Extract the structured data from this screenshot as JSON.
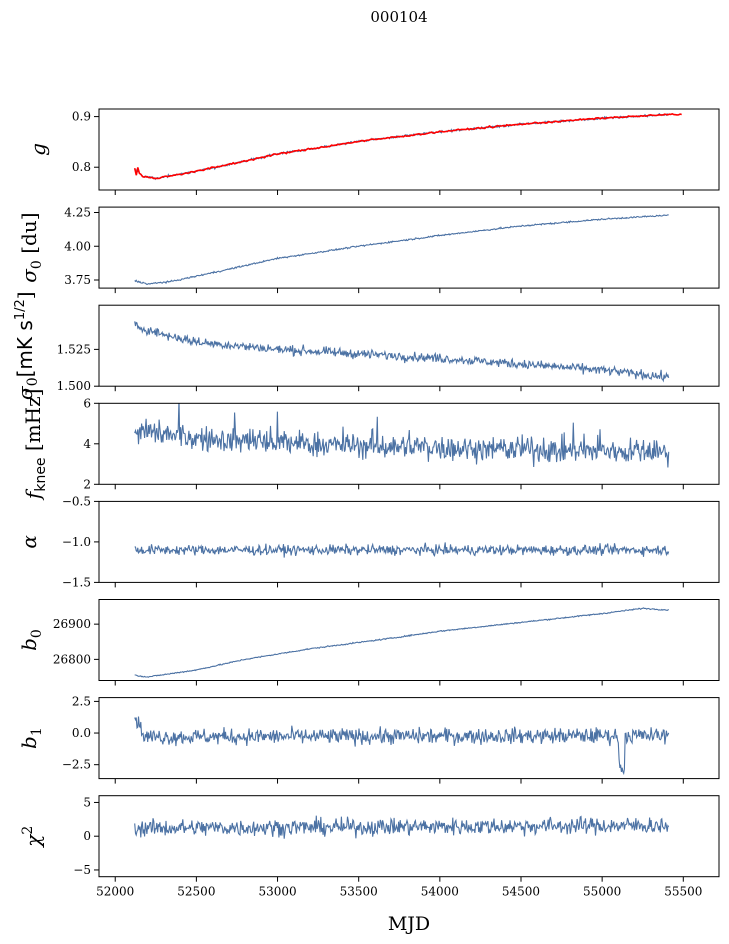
{
  "figure": {
    "suptitle": "000104"
  },
  "chart_data": {
    "type": "line",
    "xlabel": "MJD",
    "xlim": [
      51900,
      55720
    ],
    "xticks": [
      52000,
      52500,
      53000,
      53500,
      54000,
      54500,
      55000,
      55500
    ],
    "xtick_labels": [
      "52000",
      "52500",
      "53000",
      "53500",
      "54000",
      "54500",
      "55000",
      "55500"
    ],
    "data_range": [
      52120,
      55410
    ],
    "series_color": "#4c72a4",
    "overlay_color": "#ff0000",
    "panels": [
      {
        "ylabel": "g",
        "ylim": [
          0.755,
          0.915
        ],
        "yticks": [
          0.8,
          0.9
        ],
        "ytick_labels": [
          "0.8",
          "0.9"
        ],
        "trend": [
          [
            52120,
            0.797
          ],
          [
            52170,
            0.782
          ],
          [
            52250,
            0.778
          ],
          [
            52500,
            0.792
          ],
          [
            53000,
            0.826
          ],
          [
            53500,
            0.851
          ],
          [
            54000,
            0.87
          ],
          [
            54500,
            0.885
          ],
          [
            55000,
            0.897
          ],
          [
            55410,
            0.904
          ]
        ],
        "noise": 0.0015,
        "overlay": true
      },
      {
        "ylabel": "σ0 [du]",
        "ylim": [
          3.69,
          4.29
        ],
        "yticks": [
          3.75,
          4.0,
          4.25
        ],
        "ytick_labels": [
          "3.75",
          "4.00",
          "4.25"
        ],
        "trend": [
          [
            52120,
            3.745
          ],
          [
            52200,
            3.72
          ],
          [
            52350,
            3.74
          ],
          [
            52700,
            3.83
          ],
          [
            53000,
            3.91
          ],
          [
            53500,
            4.0
          ],
          [
            54000,
            4.08
          ],
          [
            54500,
            4.15
          ],
          [
            55000,
            4.2
          ],
          [
            55410,
            4.23
          ]
        ],
        "noise": 0.004
      },
      {
        "ylabel": "σ0[mK s1/2]",
        "ylim": [
          1.5,
          1.555
        ],
        "yticks": [
          1.5,
          1.525
        ],
        "ytick_labels": [
          "1.500",
          "1.525"
        ],
        "trend": [
          [
            52120,
            1.541
          ],
          [
            52300,
            1.535
          ],
          [
            52500,
            1.53
          ],
          [
            53000,
            1.525
          ],
          [
            53500,
            1.522
          ],
          [
            54000,
            1.519
          ],
          [
            54500,
            1.515
          ],
          [
            55000,
            1.511
          ],
          [
            55410,
            1.506
          ]
        ],
        "noise": 0.0022
      },
      {
        "ylabel": "fknee [mHz]",
        "ylim": [
          2,
          6
        ],
        "yticks": [
          2,
          4,
          6
        ],
        "ytick_labels": [
          "2",
          "4",
          "6"
        ],
        "trend": [
          [
            52120,
            4.6
          ],
          [
            52600,
            4.2
          ],
          [
            53500,
            3.9
          ],
          [
            54500,
            3.7
          ],
          [
            55410,
            3.6
          ]
        ],
        "noise": 0.45
      },
      {
        "ylabel": "α",
        "ylim": [
          -1.5,
          -0.5
        ],
        "yticks": [
          -1.5,
          -1.0,
          -0.5
        ],
        "ytick_labels": [
          "−1.5",
          "−1.0",
          "−0.5"
        ],
        "trend": [
          [
            52120,
            -1.1
          ],
          [
            55410,
            -1.1
          ]
        ],
        "noise": 0.045
      },
      {
        "ylabel": "b0",
        "ylim": [
          26740,
          26970
        ],
        "yticks": [
          26800,
          26900
        ],
        "ytick_labels": [
          "26800",
          "26900"
        ],
        "trend": [
          [
            52120,
            26755
          ],
          [
            52200,
            26750
          ],
          [
            52500,
            26770
          ],
          [
            52800,
            26800
          ],
          [
            53200,
            26830
          ],
          [
            53700,
            26860
          ],
          [
            54000,
            26880
          ],
          [
            54500,
            26905
          ],
          [
            55000,
            26930
          ],
          [
            55250,
            26945
          ],
          [
            55410,
            26940
          ]
        ],
        "noise": 1.2
      },
      {
        "ylabel": "b1",
        "ylim": [
          -3.6,
          2.8
        ],
        "yticks": [
          -2.5,
          0.0,
          2.5
        ],
        "ytick_labels": [
          "−2.5",
          "0.0",
          "2.5"
        ],
        "trend": [
          [
            52120,
            1.5
          ],
          [
            52180,
            -0.3
          ],
          [
            55410,
            -0.2
          ]
        ],
        "noise": 0.45
      },
      {
        "ylabel": "χ2",
        "ylim": [
          -6,
          6
        ],
        "yticks": [
          -5,
          0,
          5
        ],
        "ytick_labels": [
          "−5",
          "0",
          "5"
        ],
        "trend": [
          [
            52120,
            1.2
          ],
          [
            55410,
            1.6
          ]
        ],
        "noise": 0.9
      }
    ]
  }
}
